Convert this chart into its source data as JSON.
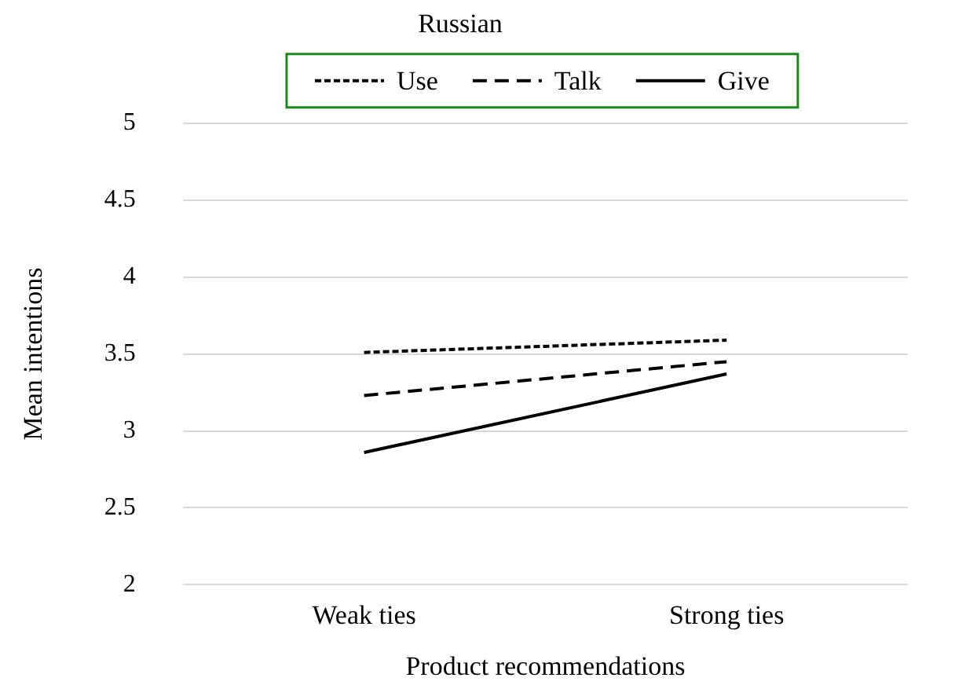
{
  "chart_data": {
    "type": "line",
    "title": "Russian",
    "xlabel": "Product recommendations",
    "ylabel": "Mean intentions",
    "categories": [
      "Weak ties",
      "Strong ties"
    ],
    "series": [
      {
        "name": "Use",
        "color": "#000000",
        "line_style": "dotted",
        "values": [
          3.51,
          3.59
        ]
      },
      {
        "name": "Talk",
        "color": "#000000",
        "line_style": "dashed",
        "values": [
          3.23,
          3.45
        ]
      },
      {
        "name": "Give",
        "color": "#000000",
        "line_style": "solid",
        "values": [
          2.86,
          3.37
        ]
      }
    ],
    "ylim": [
      2,
      5
    ],
    "yticks": [
      2,
      2.5,
      3,
      3.5,
      4,
      4.5,
      5
    ],
    "grid": "y",
    "legend": "top",
    "marker": "none"
  }
}
